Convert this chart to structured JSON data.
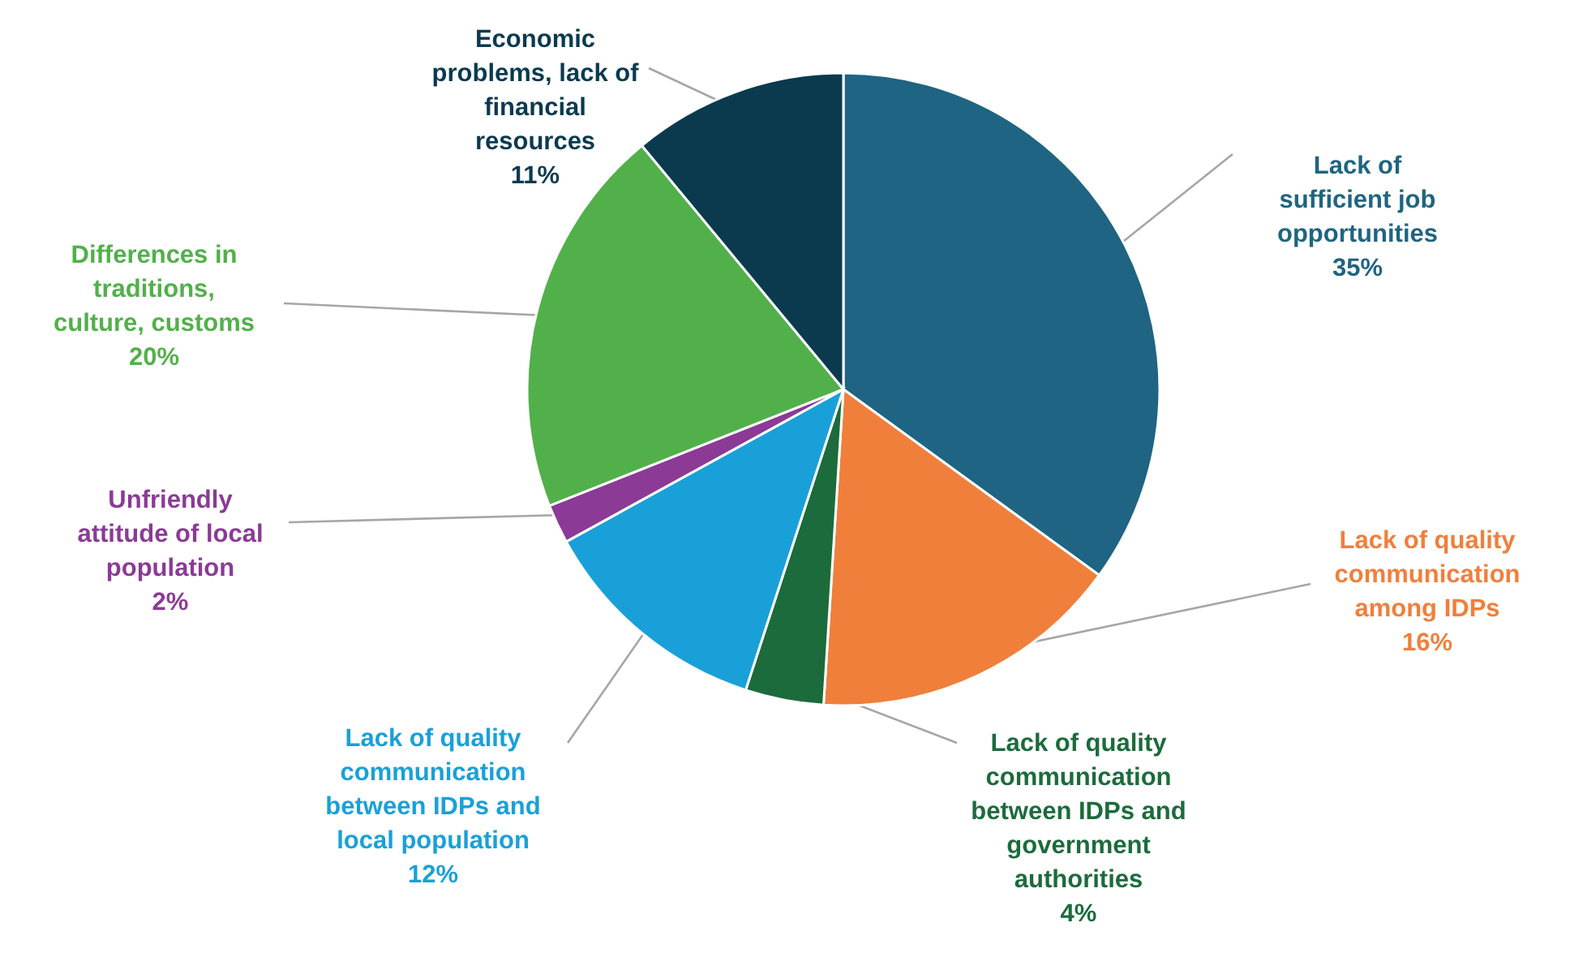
{
  "chart_data": {
    "type": "pie",
    "categories": [
      "Lack of sufficient job opportunities",
      "Lack of quality communication among IDPs",
      "Lack of quality communication between IDPs and government authorities",
      "Lack of quality communication between IDPs and local population",
      "Unfriendly attitude of local population",
      "Differences in traditions, culture, customs",
      "Economic problems, lack of financial resources"
    ],
    "values": [
      35,
      16,
      4,
      12,
      2,
      20,
      11
    ],
    "value_labels": [
      "35%",
      "16%",
      "4%",
      "12%",
      "2%",
      "20%",
      "11%"
    ],
    "colors": [
      "#1f6482",
      "#f07f3c",
      "#1c6b3c",
      "#1aa0d8",
      "#8b3a96",
      "#52b04a",
      "#0b3a4f"
    ]
  }
}
